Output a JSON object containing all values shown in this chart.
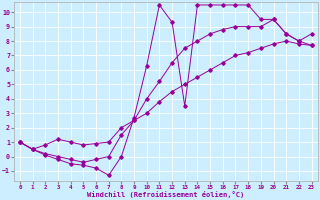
{
  "xlabel": "Windchill (Refroidissement éolien,°C)",
  "xlim": [
    -0.5,
    23.5
  ],
  "ylim": [
    -1.7,
    10.7
  ],
  "xticks": [
    0,
    1,
    2,
    3,
    4,
    5,
    6,
    7,
    8,
    9,
    10,
    11,
    12,
    13,
    14,
    15,
    16,
    17,
    18,
    19,
    20,
    21,
    22,
    23
  ],
  "yticks": [
    -1,
    0,
    1,
    2,
    3,
    4,
    5,
    6,
    7,
    8,
    9,
    10
  ],
  "bg_color": "#cceeff",
  "grid_color": "#ffffff",
  "line_color": "#990099",
  "curve1_x": [
    0,
    1,
    2,
    3,
    4,
    5,
    6,
    7,
    8,
    9,
    10,
    11,
    12,
    13,
    14,
    15,
    16,
    17,
    18,
    19,
    20,
    21,
    22,
    23
  ],
  "curve1_y": [
    1.0,
    0.5,
    0.1,
    -0.2,
    -0.5,
    -0.6,
    -0.8,
    -1.3,
    0.0,
    2.7,
    6.3,
    10.5,
    9.3,
    3.5,
    10.5,
    10.5,
    10.5,
    10.5,
    10.5,
    9.5,
    9.5,
    8.5,
    8.0,
    7.7
  ],
  "curve2_x": [
    0,
    1,
    2,
    3,
    4,
    5,
    6,
    7,
    8,
    9,
    10,
    11,
    12,
    13,
    14,
    15,
    16,
    17,
    18,
    19,
    20,
    21,
    22,
    23
  ],
  "curve2_y": [
    1.0,
    0.5,
    0.8,
    1.2,
    1.0,
    0.8,
    0.9,
    1.0,
    2.0,
    2.5,
    3.0,
    3.8,
    4.5,
    5.0,
    5.5,
    6.0,
    6.5,
    7.0,
    7.2,
    7.5,
    7.8,
    8.0,
    7.8,
    7.7
  ],
  "curve3_x": [
    0,
    1,
    2,
    3,
    4,
    5,
    6,
    7,
    8,
    9,
    10,
    11,
    12,
    13,
    14,
    15,
    16,
    17,
    18,
    19,
    20,
    21,
    22,
    23
  ],
  "curve3_y": [
    1.0,
    0.5,
    0.2,
    0.0,
    -0.2,
    -0.4,
    -0.2,
    0.0,
    1.5,
    2.5,
    4.0,
    5.2,
    6.5,
    7.5,
    8.0,
    8.5,
    8.8,
    9.0,
    9.0,
    9.0,
    9.5,
    8.5,
    8.0,
    8.5
  ]
}
